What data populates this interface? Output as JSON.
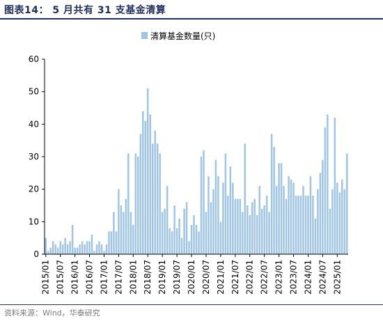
{
  "page": {
    "title": "图表14：  5 月共有 31 支基金清算",
    "source": "资料来源：Wind，华泰研究"
  },
  "colors": {
    "bar": "#9dc3e6",
    "axis": "#000000",
    "title": "#1f2d5c"
  },
  "chart_data": {
    "type": "bar",
    "title": "",
    "xlabel": "",
    "ylabel": "",
    "ylim": [
      0,
      60
    ],
    "yticks": [
      0,
      10,
      20,
      30,
      40,
      50,
      60
    ],
    "grid": false,
    "legend": {
      "position": "top-center",
      "entries": [
        "清算基金数量(只)"
      ]
    },
    "tick_labels": [
      "2015/01",
      "2015/07",
      "2016/01",
      "2016/07",
      "2017/01",
      "2017/07",
      "2018/01",
      "2018/07",
      "2019/01",
      "2019/07",
      "2020/01",
      "2020/07",
      "2021/01",
      "2021/07",
      "2022/01",
      "2022/07",
      "2023/01",
      "2023/07",
      "2024/01",
      "2024/07",
      "2025/01"
    ],
    "categories": [
      "2015/01",
      "2015/02",
      "2015/03",
      "2015/04",
      "2015/05",
      "2015/06",
      "2015/07",
      "2015/08",
      "2015/09",
      "2015/10",
      "2015/11",
      "2015/12",
      "2016/01",
      "2016/02",
      "2016/03",
      "2016/04",
      "2016/05",
      "2016/06",
      "2016/07",
      "2016/08",
      "2016/09",
      "2016/10",
      "2016/11",
      "2016/12",
      "2017/01",
      "2017/02",
      "2017/03",
      "2017/04",
      "2017/05",
      "2017/06",
      "2017/07",
      "2017/08",
      "2017/09",
      "2017/10",
      "2017/11",
      "2017/12",
      "2018/01",
      "2018/02",
      "2018/03",
      "2018/04",
      "2018/05",
      "2018/06",
      "2018/07",
      "2018/08",
      "2018/09",
      "2018/10",
      "2018/11",
      "2018/12",
      "2019/01",
      "2019/02",
      "2019/03",
      "2019/04",
      "2019/05",
      "2019/06",
      "2019/07",
      "2019/08",
      "2019/09",
      "2019/10",
      "2019/11",
      "2019/12",
      "2020/01",
      "2020/02",
      "2020/03",
      "2020/04",
      "2020/05",
      "2020/06",
      "2020/07",
      "2020/08",
      "2020/09",
      "2020/10",
      "2020/11",
      "2020/12",
      "2021/01",
      "2021/02",
      "2021/03",
      "2021/04",
      "2021/05",
      "2021/06",
      "2021/07",
      "2021/08",
      "2021/09",
      "2021/10",
      "2021/11",
      "2021/12",
      "2022/01",
      "2022/02",
      "2022/03",
      "2022/04",
      "2022/05",
      "2022/06",
      "2022/07",
      "2022/08",
      "2022/09",
      "2022/10",
      "2022/11",
      "2022/12",
      "2023/01",
      "2023/02",
      "2023/03",
      "2023/04",
      "2023/05",
      "2023/06",
      "2023/07",
      "2023/08",
      "2023/09",
      "2023/10",
      "2023/11",
      "2023/12",
      "2024/01",
      "2024/02",
      "2024/03",
      "2024/04",
      "2024/05",
      "2024/06",
      "2024/07",
      "2024/08",
      "2024/09",
      "2024/10",
      "2024/11",
      "2024/12",
      "2025/01",
      "2025/02",
      "2025/03",
      "2025/04",
      "2025/05"
    ],
    "series": [
      {
        "name": "清算基金数量(只)",
        "values": [
          5,
          1,
          2,
          4,
          3,
          2,
          4,
          3,
          5,
          3,
          4,
          9,
          2,
          2,
          3,
          4,
          3,
          4,
          4,
          6,
          1,
          3,
          4,
          3,
          1,
          3,
          7,
          7,
          13,
          7,
          20,
          15,
          13,
          17,
          31,
          13,
          9,
          31,
          30,
          37,
          44,
          41,
          51,
          43,
          34,
          38,
          34,
          31,
          13,
          14,
          21,
          8,
          7,
          15,
          8,
          11,
          5,
          14,
          16,
          4,
          9,
          12,
          9,
          7,
          30,
          32,
          13,
          24,
          16,
          20,
          29,
          24,
          10,
          22,
          31,
          18,
          27,
          22,
          17,
          17,
          17,
          13,
          34,
          15,
          12,
          16,
          17,
          12,
          21,
          14,
          15,
          18,
          13,
          37,
          33,
          21,
          28,
          28,
          21,
          17,
          24,
          23,
          22,
          18,
          18,
          18,
          21,
          18,
          18,
          24,
          18,
          11,
          20,
          25,
          29,
          39,
          43,
          14,
          20,
          42,
          22,
          19,
          23,
          20,
          31
        ]
      }
    ]
  }
}
